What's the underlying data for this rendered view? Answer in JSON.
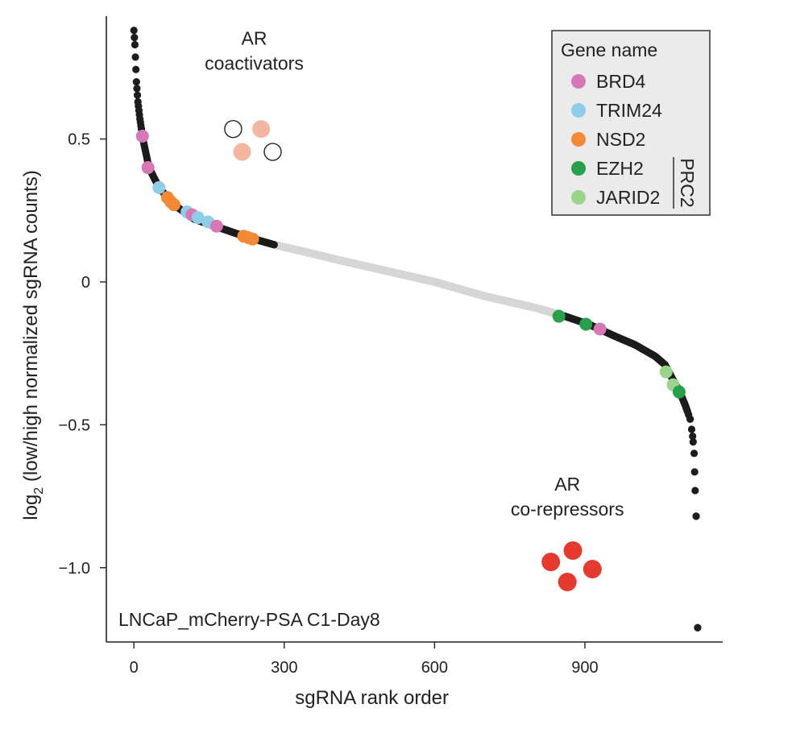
{
  "chart_data": {
    "type": "scatter",
    "title": "",
    "xlabel": "sgRNA rank order",
    "ylabel_main": "log",
    "ylabel_sub": "2",
    "ylabel_rest": " (low/high normalized sgRNA counts)",
    "xlim": [
      -55,
      1175
    ],
    "ylim": [
      -1.26,
      0.93
    ],
    "xticks": [
      {
        "v": 0,
        "label": "0"
      },
      {
        "v": 300,
        "label": "300"
      },
      {
        "v": 600,
        "label": "600"
      },
      {
        "v": 900,
        "label": "900"
      }
    ],
    "yticks": [
      {
        "v": 0.5,
        "label": "0.5"
      },
      {
        "v": 0,
        "label": "0"
      },
      {
        "v": -0.5,
        "label": "−0.5"
      },
      {
        "v": -1.0,
        "label": "−1.0"
      }
    ],
    "sample_label": "LNCaP_mCherry-PSA C1-Day8",
    "legend_title": "Gene name",
    "legend_position": "top-right",
    "prc2_label": "PRC2",
    "colors": {
      "top_tail": "#1c1c1c",
      "middle": "#d6d6d6",
      "BRD4": "#d877b6",
      "TRIM24": "#8ecde8",
      "NSD2": "#f38934",
      "EZH2": "#27a04c",
      "JARID2": "#9bd48b",
      "coactivator": "#f5b6a1",
      "corepressor": "#e63a2f"
    },
    "legend": [
      {
        "name": "BRD4",
        "color": "#d877b6"
      },
      {
        "name": "TRIM24",
        "color": "#8ecde8"
      },
      {
        "name": "NSD2",
        "color": "#f38934"
      },
      {
        "name": "EZH2",
        "color": "#27a04c"
      },
      {
        "name": "JARID2",
        "color": "#9bd48b"
      }
    ],
    "curve": {
      "n": 1125,
      "anchors": [
        [
          0,
          0.88
        ],
        [
          2,
          0.83
        ],
        [
          5,
          0.7
        ],
        [
          8,
          0.63
        ],
        [
          12,
          0.57
        ],
        [
          18,
          0.5
        ],
        [
          30,
          0.4
        ],
        [
          50,
          0.33
        ],
        [
          80,
          0.27
        ],
        [
          120,
          0.22
        ],
        [
          170,
          0.19
        ],
        [
          220,
          0.16
        ],
        [
          280,
          0.13
        ],
        [
          330,
          0.11
        ],
        [
          400,
          0.08
        ],
        [
          500,
          0.04
        ],
        [
          600,
          0.0
        ],
        [
          700,
          -0.05
        ],
        [
          800,
          -0.09
        ],
        [
          860,
          -0.12
        ],
        [
          910,
          -0.15
        ],
        [
          960,
          -0.19
        ],
        [
          1000,
          -0.22
        ],
        [
          1040,
          -0.26
        ],
        [
          1060,
          -0.29
        ],
        [
          1075,
          -0.34
        ],
        [
          1088,
          -0.38
        ],
        [
          1100,
          -0.43
        ],
        [
          1110,
          -0.48
        ],
        [
          1115,
          -0.54
        ],
        [
          1118,
          -0.6
        ],
        [
          1120,
          -0.73
        ],
        [
          1122,
          -0.82
        ],
        [
          1125,
          -1.21
        ]
      ],
      "top_tail_until": 280,
      "bottom_tail_from": 860
    },
    "highlighted": [
      {
        "gene": "BRD4",
        "x": 17,
        "y": 0.51
      },
      {
        "gene": "BRD4",
        "x": 28,
        "y": 0.4
      },
      {
        "gene": "TRIM24",
        "x": 50,
        "y": 0.33
      },
      {
        "gene": "NSD2",
        "x": 67,
        "y": 0.295
      },
      {
        "gene": "NSD2",
        "x": 74,
        "y": 0.28
      },
      {
        "gene": "NSD2",
        "x": 80,
        "y": 0.27
      },
      {
        "gene": "TRIM24",
        "x": 106,
        "y": 0.245
      },
      {
        "gene": "BRD4",
        "x": 116,
        "y": 0.235
      },
      {
        "gene": "TRIM24",
        "x": 128,
        "y": 0.225
      },
      {
        "gene": "TRIM24",
        "x": 148,
        "y": 0.21
      },
      {
        "gene": "BRD4",
        "x": 165,
        "y": 0.195
      },
      {
        "gene": "NSD2",
        "x": 219,
        "y": 0.16
      },
      {
        "gene": "NSD2",
        "x": 228,
        "y": 0.155
      },
      {
        "gene": "NSD2",
        "x": 237,
        "y": 0.15
      },
      {
        "gene": "EZH2",
        "x": 848,
        "y": -0.12
      },
      {
        "gene": "EZH2",
        "x": 902,
        "y": -0.148
      },
      {
        "gene": "BRD4",
        "x": 930,
        "y": -0.165
      },
      {
        "gene": "JARID2",
        "x": 1062,
        "y": -0.315
      },
      {
        "gene": "JARID2",
        "x": 1076,
        "y": -0.36
      },
      {
        "gene": "EZH2",
        "x": 1088,
        "y": -0.385
      }
    ],
    "annotations": [
      {
        "line1": "AR",
        "line2": "coactivators",
        "x": 240,
        "y": 0.83
      },
      {
        "line1": "AR",
        "line2": "co-repressors",
        "x": 865,
        "y": -0.73
      }
    ],
    "coactivator_cluster": [
      {
        "x": 198,
        "y": 0.535,
        "filled": false
      },
      {
        "x": 254,
        "y": 0.535,
        "filled": true
      },
      {
        "x": 216,
        "y": 0.455,
        "filled": true
      },
      {
        "x": 277,
        "y": 0.455,
        "filled": false
      }
    ],
    "corepressor_cluster": [
      {
        "x": 832,
        "y": -0.98
      },
      {
        "x": 876,
        "y": -0.94
      },
      {
        "x": 865,
        "y": -1.05
      },
      {
        "x": 915,
        "y": -1.005
      }
    ]
  }
}
